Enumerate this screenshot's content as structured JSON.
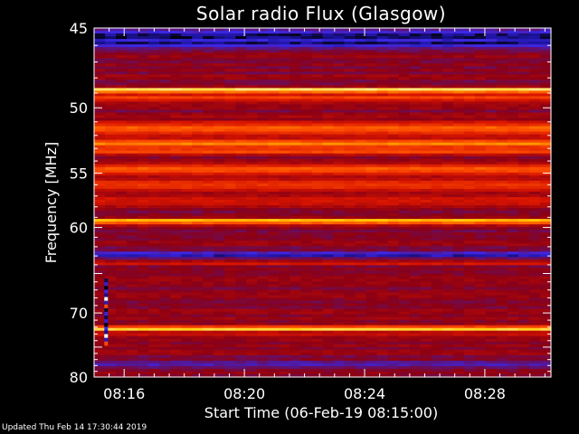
{
  "chart_data": {
    "type": "heatmap",
    "title": "Solar radio Flux (Glasgow)",
    "xlabel": "Start Time (06-Feb-19 08:15:00)",
    "ylabel": "Frequency [MHz]",
    "x_ticks": [
      "08:16",
      "08:20",
      "08:24",
      "08:28"
    ],
    "x_tick_minutes": [
      16,
      20,
      24,
      28
    ],
    "x_range_minutes": [
      15.0,
      30.2
    ],
    "y_ticks": [
      45,
      50,
      55,
      60,
      70,
      80
    ],
    "y_range_mhz": [
      45,
      80
    ],
    "y_scale": "reciprocal",
    "colormap": "hot (black-blue-red-yellow-white)",
    "grid": false,
    "background_level": 0.3,
    "bands": [
      {
        "freq_mhz": 45.5,
        "width_mhz": 0.6,
        "level": 0.05
      },
      {
        "freq_mhz": 45.9,
        "width_mhz": 0.4,
        "level": 0.08
      },
      {
        "freq_mhz": 48.8,
        "width_mhz": 0.25,
        "level": 0.97
      },
      {
        "freq_mhz": 49.3,
        "width_mhz": 0.35,
        "level": 0.55
      },
      {
        "freq_mhz": 51.5,
        "width_mhz": 0.8,
        "level": 0.62
      },
      {
        "freq_mhz": 52.6,
        "width_mhz": 0.5,
        "level": 0.72
      },
      {
        "freq_mhz": 53.2,
        "width_mhz": 0.5,
        "level": 0.6
      },
      {
        "freq_mhz": 54.7,
        "width_mhz": 0.6,
        "level": 0.66
      },
      {
        "freq_mhz": 56.0,
        "width_mhz": 0.8,
        "level": 0.55
      },
      {
        "freq_mhz": 57.5,
        "width_mhz": 0.6,
        "level": 0.48
      },
      {
        "freq_mhz": 59.4,
        "width_mhz": 0.4,
        "level": 0.85
      },
      {
        "freq_mhz": 62.9,
        "width_mhz": 0.6,
        "level": 0.1
      },
      {
        "freq_mhz": 63.8,
        "width_mhz": 0.4,
        "level": 0.45
      },
      {
        "freq_mhz": 72.2,
        "width_mhz": 0.5,
        "level": 0.9
      },
      {
        "freq_mhz": 73.0,
        "width_mhz": 0.6,
        "level": 0.45
      },
      {
        "freq_mhz": 77.6,
        "width_mhz": 1.0,
        "level": 0.15
      }
    ],
    "bursts": [
      {
        "time_minutes": 15.4,
        "freq_range_mhz": [
          65.6,
          74.7
        ],
        "kind": "broadband-spike"
      }
    ]
  },
  "footer": {
    "updated": "Updated Thu Feb 14 17:30:44 2019"
  },
  "colors": {
    "background": "#000000",
    "axes": "#ffffff",
    "text": "#ffffff"
  }
}
